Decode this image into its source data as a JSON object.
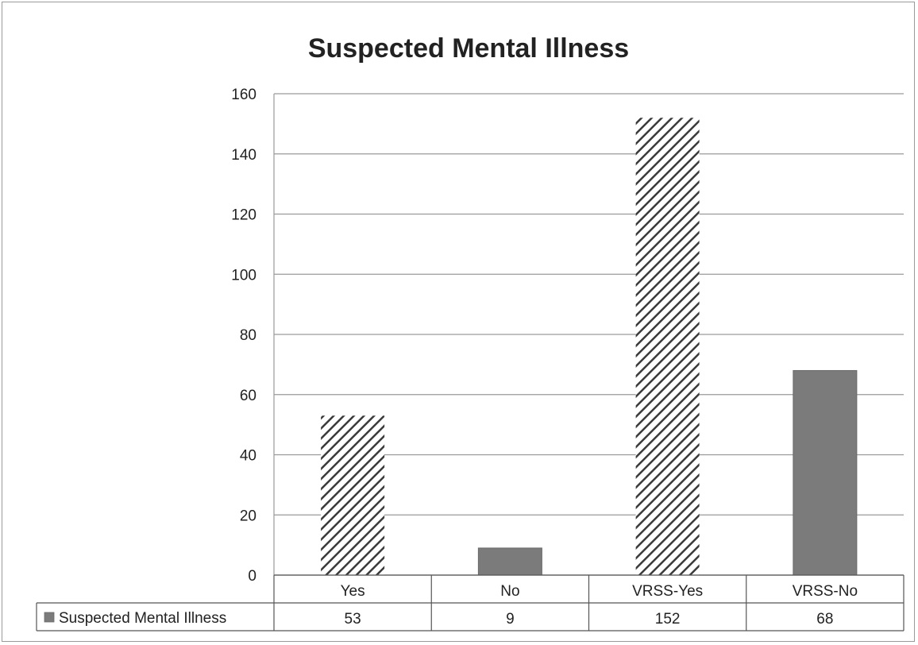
{
  "chart_data": {
    "type": "bar",
    "title": "Suspected Mental Illness",
    "categories": [
      "Yes",
      "No",
      "VRSS-Yes",
      "VRSS-No"
    ],
    "series": [
      {
        "name": "Suspected Mental Illness",
        "values": [
          53,
          9,
          152,
          68
        ]
      }
    ],
    "bar_fills": [
      "hatched",
      "solid",
      "hatched",
      "solid"
    ],
    "ylim": [
      0,
      160
    ],
    "yticks": [
      0,
      20,
      40,
      60,
      80,
      100,
      120,
      140,
      160
    ],
    "xlabel": "",
    "ylabel": "",
    "grid": true,
    "legend": "data-table-below",
    "colors": {
      "solid_bar": "#7b7b7b",
      "hatch": "#3a3a3a",
      "grid": "#9a9a9a",
      "text": "#222222"
    }
  }
}
